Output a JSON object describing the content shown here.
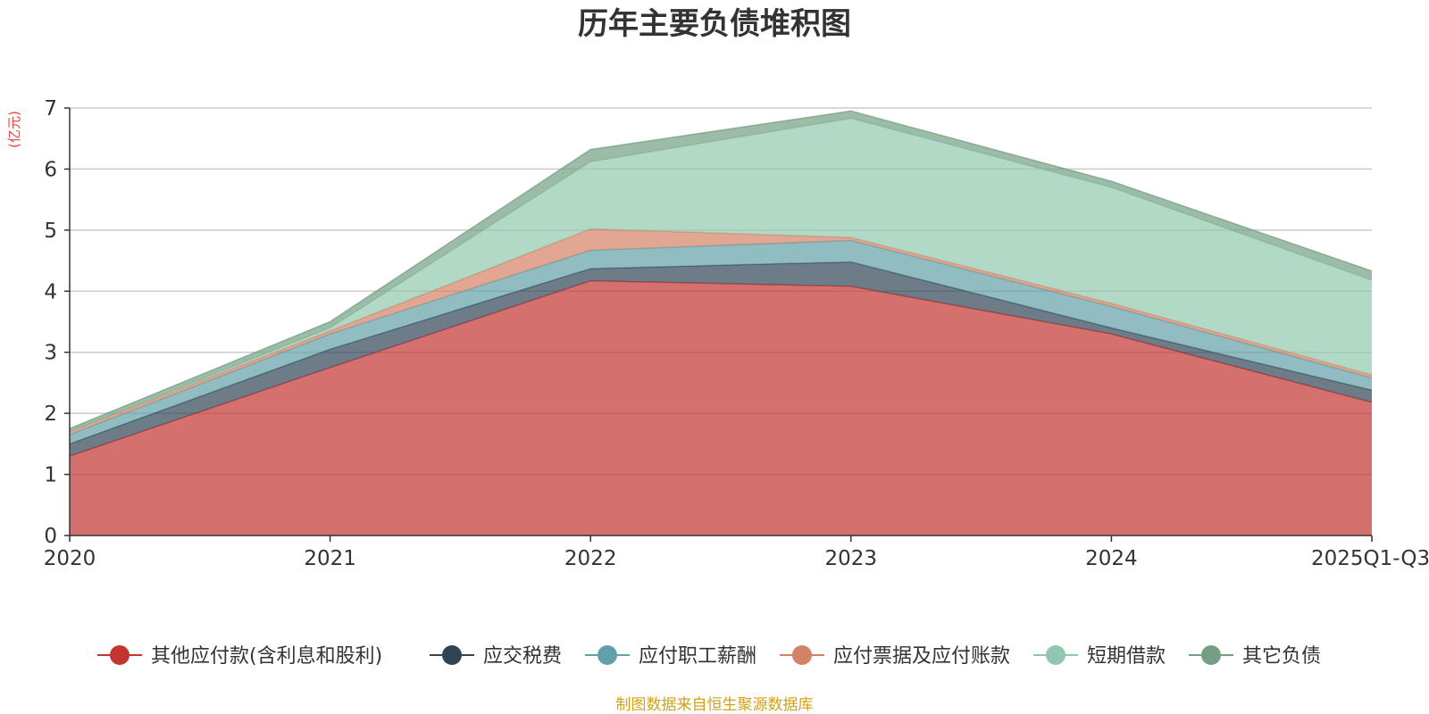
{
  "chart_data": {
    "type": "area",
    "stacked": true,
    "title": "历年主要负债堆积图",
    "ylabel": "(亿元)",
    "xlabel": "",
    "ylim": [
      0,
      7
    ],
    "yticks": [
      0,
      1,
      2,
      3,
      4,
      5,
      6,
      7
    ],
    "categories": [
      "2020",
      "2021",
      "2022",
      "2023",
      "2024",
      "2025Q1-Q3"
    ],
    "grid": true,
    "legend_position": "bottom",
    "series": [
      {
        "name": "其他应付款(含利息和股利)",
        "color": "#c23531",
        "values": [
          1.3,
          2.75,
          4.17,
          4.08,
          3.3,
          2.18
        ]
      },
      {
        "name": "应交税费",
        "color": "#2f4554",
        "values": [
          0.2,
          0.3,
          0.2,
          0.4,
          0.1,
          0.2
        ]
      },
      {
        "name": "应付职工薪酬",
        "color": "#61a0a8",
        "values": [
          0.15,
          0.25,
          0.3,
          0.35,
          0.35,
          0.2
        ]
      },
      {
        "name": "应付票据及应付账款",
        "color": "#d48265",
        "values": [
          0.05,
          0.05,
          0.35,
          0.05,
          0.05,
          0.05
        ]
      },
      {
        "name": "短期借款",
        "color": "#91c7ae",
        "values": [
          0.0,
          0.05,
          1.1,
          1.95,
          1.9,
          1.55
        ]
      },
      {
        "name": "其它负债",
        "color": "#749f83",
        "values": [
          0.05,
          0.1,
          0.2,
          0.12,
          0.1,
          0.15
        ]
      }
    ]
  },
  "source": "制图数据来自恒生聚源数据库"
}
